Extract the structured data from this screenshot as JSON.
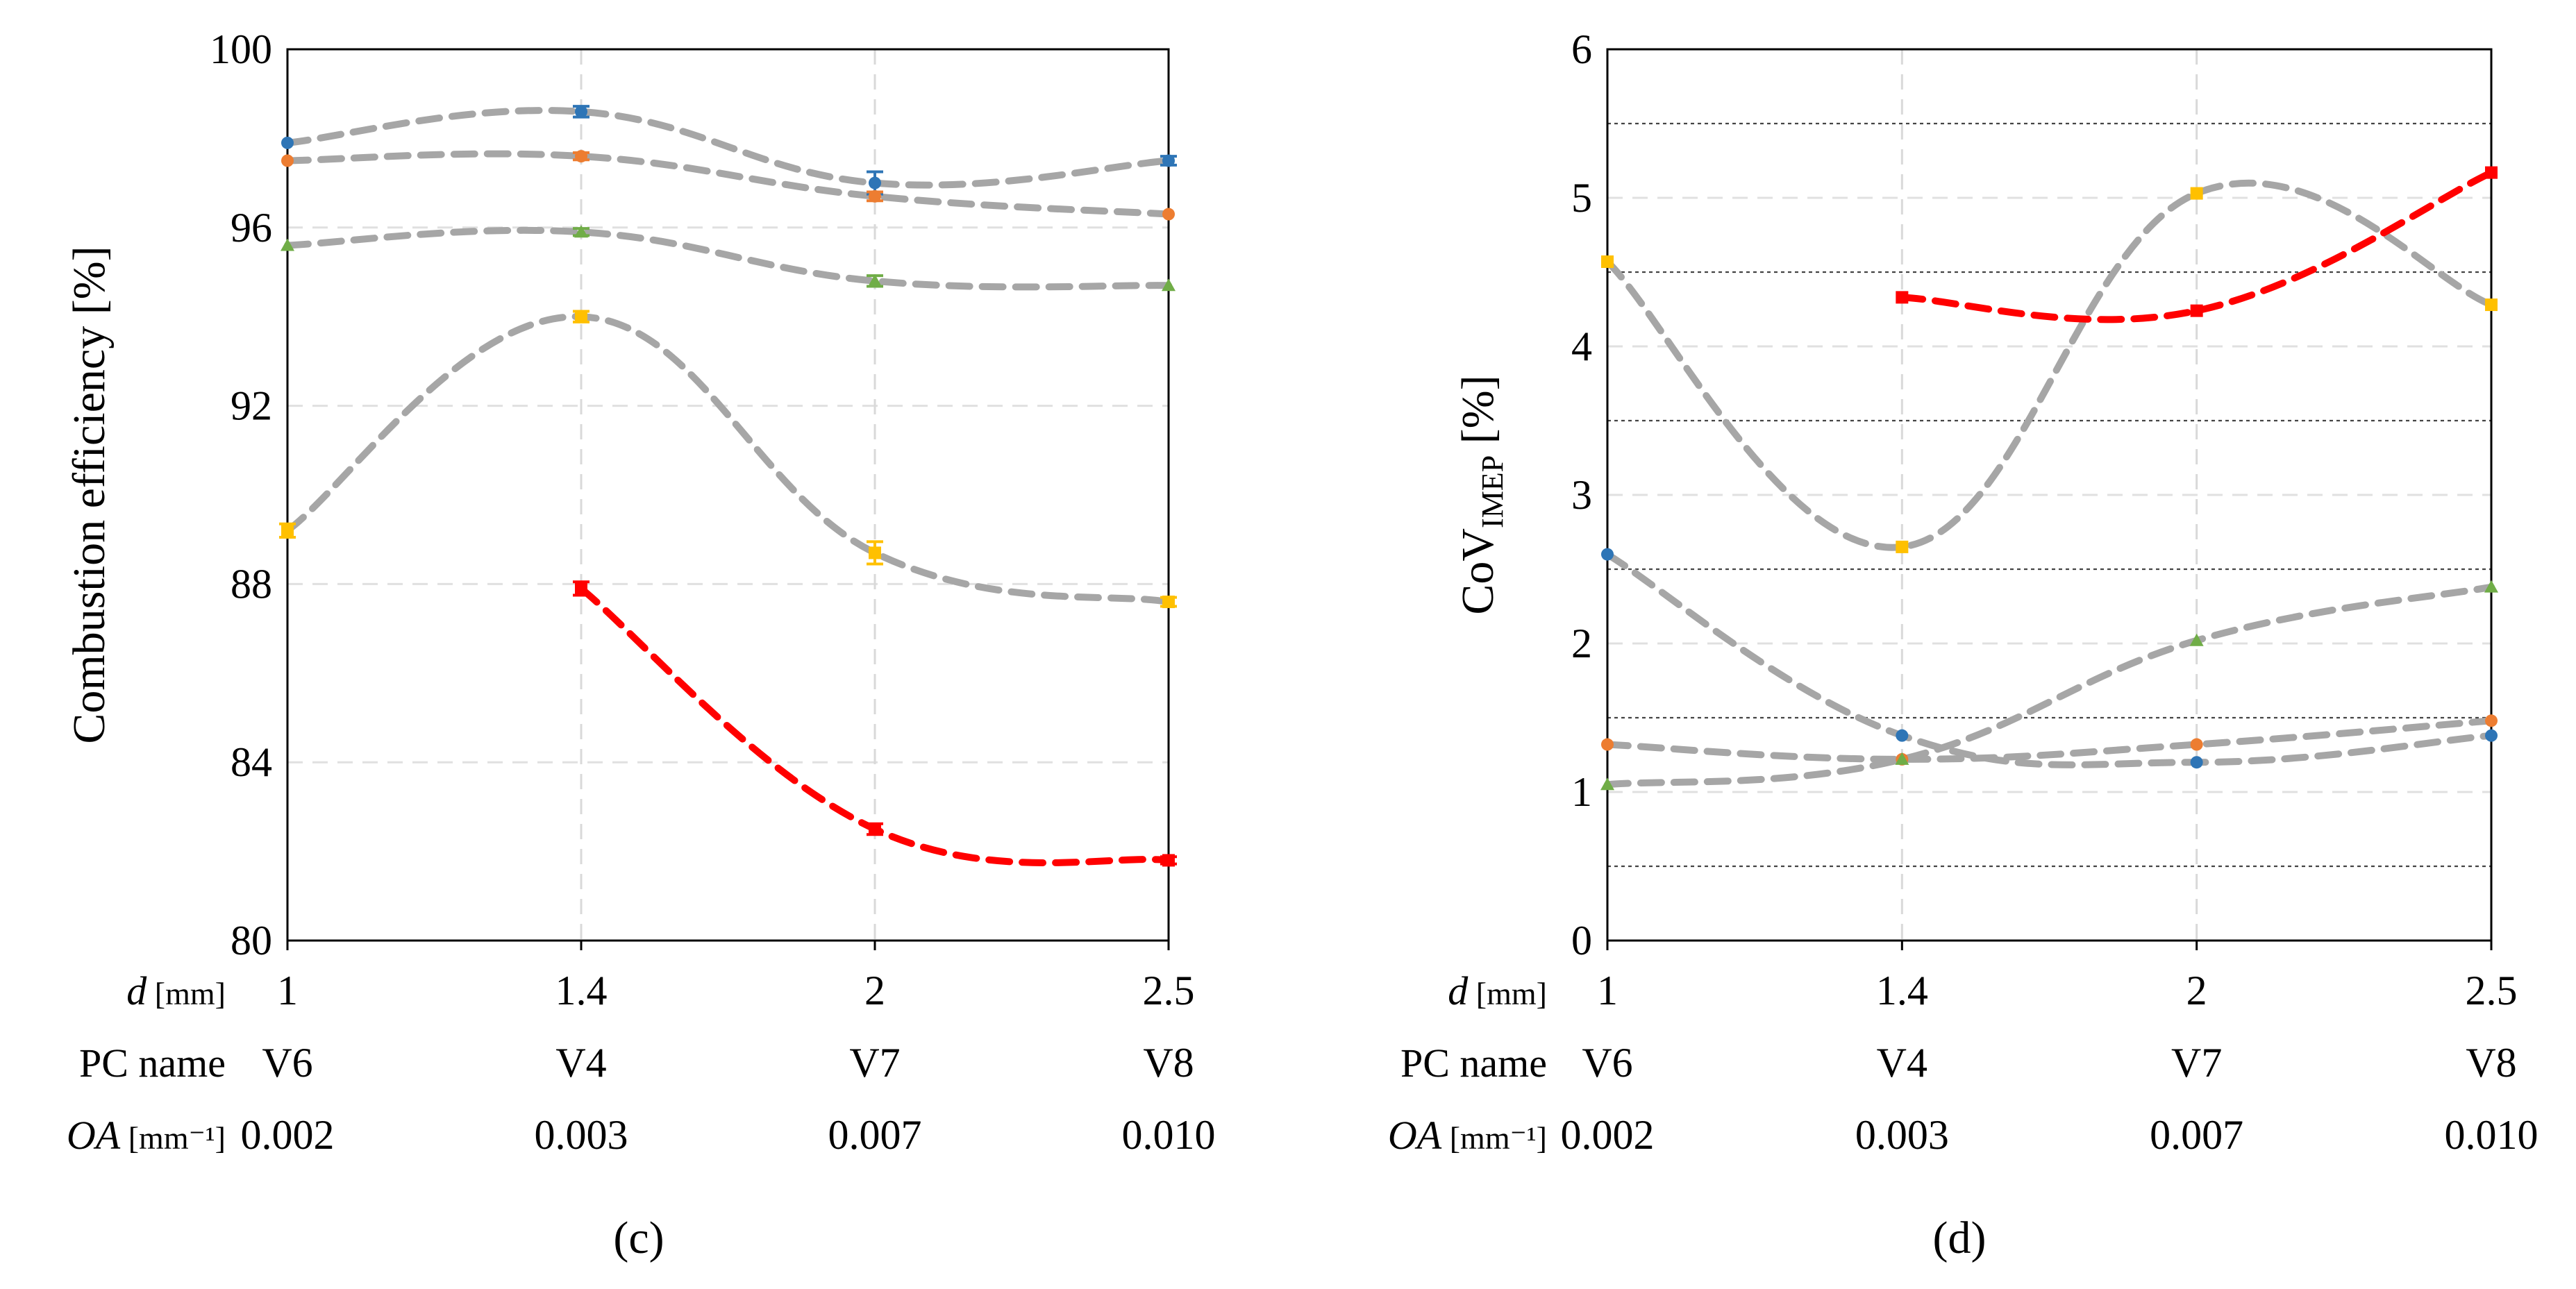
{
  "chart_data": [
    {
      "panel": "(c)",
      "type": "line",
      "ylabel": "Combustion efficiency [%]",
      "ylim": [
        80,
        100
      ],
      "yticks": [
        80,
        84,
        88,
        92,
        96,
        100
      ],
      "grid": true,
      "categories": [
        "1",
        "1.4",
        "2",
        "2.5"
      ],
      "rows": [
        {
          "label": "d",
          "unit": "[mm]",
          "values": [
            "1",
            "1.4",
            "2",
            "2.5"
          ]
        },
        {
          "label": "PC name",
          "unit": "",
          "values": [
            "V6",
            "V4",
            "V7",
            "V8"
          ]
        },
        {
          "label": "OA",
          "unit": "[mm⁻¹]",
          "values": [
            "0.002",
            "0.003",
            "0.007",
            "0.010"
          ]
        }
      ],
      "series": [
        {
          "name": "blue",
          "color": "#2e75b6",
          "marker": "circle",
          "values": [
            97.9,
            98.6,
            97.0,
            97.5
          ],
          "error": [
            0,
            0.12,
            0.25,
            0.1
          ],
          "trend_color": "#a6a6a6"
        },
        {
          "name": "orange",
          "color": "#ed7d31",
          "marker": "circle",
          "values": [
            97.5,
            97.6,
            96.7,
            96.3
          ],
          "error": [
            0,
            0.08,
            0.1,
            0
          ],
          "trend_color": "#a6a6a6"
        },
        {
          "name": "green",
          "color": "#70ad47",
          "marker": "triangle",
          "values": [
            95.6,
            95.9,
            94.8,
            94.7
          ],
          "error": [
            0,
            0.08,
            0.12,
            0
          ],
          "trend_color": "#a6a6a6"
        },
        {
          "name": "yellow",
          "color": "#ffc000",
          "marker": "square",
          "values": [
            89.2,
            94.0,
            88.7,
            87.6
          ],
          "error": [
            0.15,
            0.12,
            0.25,
            0.1
          ],
          "trend_color": "#a6a6a6"
        },
        {
          "name": "red",
          "color": "#ff0000",
          "marker": "square",
          "values": [
            null,
            87.9,
            82.5,
            81.8
          ],
          "error": [
            0,
            0.15,
            0.12,
            0.08
          ],
          "trend_color": "#ff0000"
        }
      ]
    },
    {
      "panel": "(d)",
      "type": "line",
      "ylabel": "CoV",
      "ylabel_subscript": "IMEP",
      "ylabel_unit": "[%]",
      "ylim": [
        0,
        6
      ],
      "yticks": [
        0,
        1,
        2,
        3,
        4,
        5,
        6
      ],
      "minor_gridlines": [
        0.5,
        1.5,
        2.5,
        3.5,
        4.5,
        5.5
      ],
      "grid": true,
      "categories": [
        "1",
        "1.4",
        "2",
        "2.5"
      ],
      "rows": [
        {
          "label": "d",
          "unit": "[mm]",
          "values": [
            "1",
            "1.4",
            "2",
            "2.5"
          ]
        },
        {
          "label": "PC name",
          "unit": "",
          "values": [
            "V6",
            "V4",
            "V7",
            "V8"
          ]
        },
        {
          "label": "OA",
          "unit": "[mm⁻¹]",
          "values": [
            "0.002",
            "0.003",
            "0.007",
            "0.010"
          ]
        }
      ],
      "series": [
        {
          "name": "blue",
          "color": "#2e75b6",
          "marker": "circle",
          "values": [
            2.6,
            1.38,
            1.2,
            1.38
          ],
          "trend_color": "#a6a6a6"
        },
        {
          "name": "orange",
          "color": "#ed7d31",
          "marker": "circle",
          "values": [
            1.32,
            1.22,
            1.32,
            1.48
          ],
          "trend_color": "#a6a6a6"
        },
        {
          "name": "green",
          "color": "#70ad47",
          "marker": "triangle",
          "values": [
            1.05,
            1.22,
            2.02,
            2.38
          ],
          "trend_color": "#a6a6a6"
        },
        {
          "name": "yellow",
          "color": "#ffc000",
          "marker": "square",
          "values": [
            4.57,
            2.65,
            5.03,
            4.28
          ],
          "trend_color": "#a6a6a6"
        },
        {
          "name": "red",
          "color": "#ff0000",
          "marker": "square",
          "values": [
            null,
            4.33,
            4.24,
            5.17
          ],
          "trend_color": "#ff0000"
        }
      ]
    }
  ]
}
